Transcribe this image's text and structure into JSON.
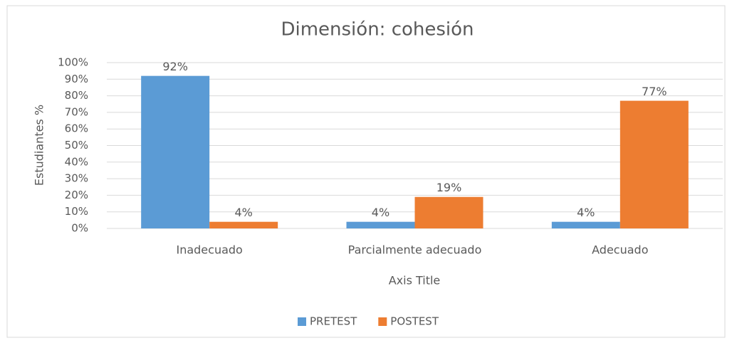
{
  "chart_data": {
    "type": "bar",
    "title": "Dimensión: cohesión",
    "y_axis_label": "Estudiantes %",
    "x_axis_label": "Axis Title",
    "categories": [
      "Inadecuado",
      "Parcialmente adecuado",
      "Adecuado"
    ],
    "series": [
      {
        "name": "PRETEST",
        "color": "#5b9bd5",
        "values": [
          92,
          4,
          4
        ],
        "value_labels": [
          "92%",
          "4%",
          "4%"
        ]
      },
      {
        "name": "POSTEST",
        "color": "#ed7d31",
        "values": [
          4,
          19,
          77
        ],
        "value_labels": [
          "4%",
          "19%",
          "77%"
        ]
      }
    ],
    "ylim": [
      0,
      100
    ],
    "yticks": [
      {
        "value": 0,
        "label": "0%"
      },
      {
        "value": 10,
        "label": "10%"
      },
      {
        "value": 20,
        "label": "20%"
      },
      {
        "value": 30,
        "label": "30%"
      },
      {
        "value": 40,
        "label": "40%"
      },
      {
        "value": 50,
        "label": "50%"
      },
      {
        "value": 60,
        "label": "60%"
      },
      {
        "value": 70,
        "label": "70%"
      },
      {
        "value": 80,
        "label": "80%"
      },
      {
        "value": 90,
        "label": "90%"
      },
      {
        "value": 100,
        "label": "100%"
      }
    ],
    "grid": true,
    "legend": "bottom"
  }
}
